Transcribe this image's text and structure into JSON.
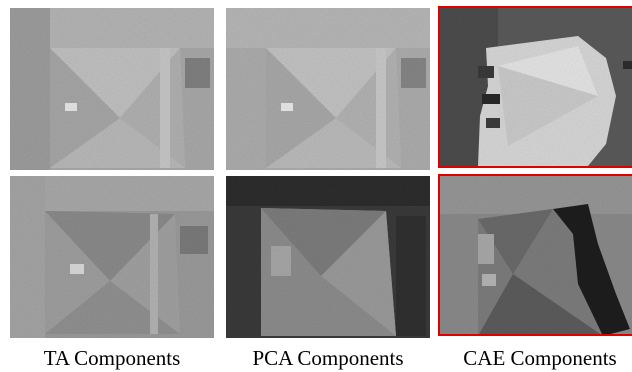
{
  "captions": [
    "TA Components",
    "PCA Components",
    "CAE Components"
  ],
  "colors": {
    "highlight_border": "#e00000",
    "caption_text": "#000000"
  },
  "panels": [
    {
      "group": "TA Components",
      "row": 1,
      "highlighted": false
    },
    {
      "group": "TA Components",
      "row": 2,
      "highlighted": false
    },
    {
      "group": "PCA Components",
      "row": 1,
      "highlighted": false
    },
    {
      "group": "PCA Components",
      "row": 2,
      "highlighted": false
    },
    {
      "group": "CAE Components",
      "row": 1,
      "highlighted": true
    },
    {
      "group": "CAE Components",
      "row": 2,
      "highlighted": true
    }
  ]
}
